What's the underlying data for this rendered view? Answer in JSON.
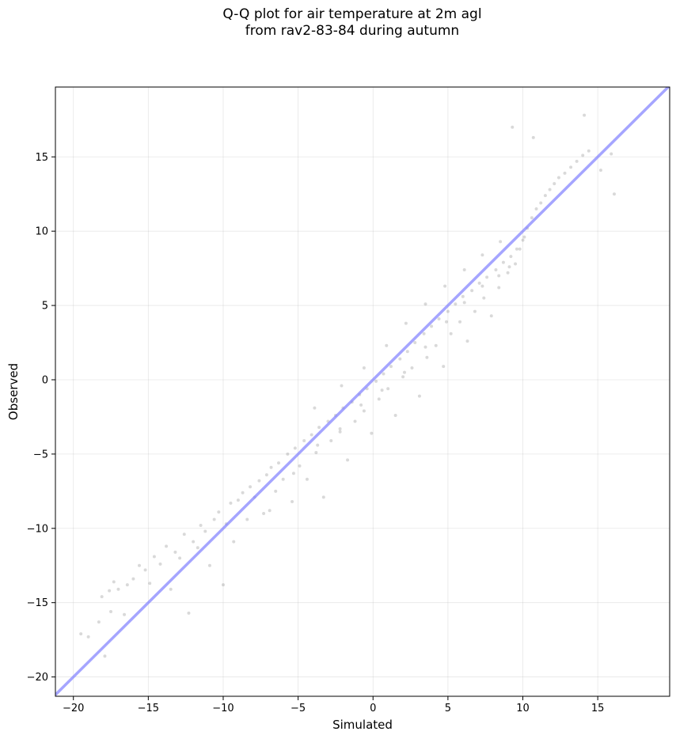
{
  "chart_data": {
    "type": "scatter",
    "title": [
      "Q-Q plot for air temperature at 2m agl",
      "from rav2-83-84 during autumn"
    ],
    "xlabel": "Simulated",
    "ylabel": "Observed",
    "xlim": [
      -21.2,
      19.8
    ],
    "ylim": [
      -21.3,
      19.7
    ],
    "xticks": [
      -20,
      -15,
      -10,
      -5,
      0,
      5,
      10,
      15
    ],
    "yticks": [
      -20,
      -15,
      -10,
      -5,
      0,
      5,
      10,
      15
    ],
    "xtick_labels": [
      "−20",
      "−15",
      "−10",
      "−5",
      "0",
      "5",
      "10",
      "15"
    ],
    "ytick_labels": [
      "−20",
      "−15",
      "−10",
      "−5",
      "0",
      "5",
      "10",
      "15"
    ],
    "grid": true,
    "point_color": "#000000",
    "point_alpha": 0.15,
    "reference_line": {
      "from": [
        -21.2,
        -21.2
      ],
      "to": [
        19.8,
        19.8
      ],
      "color": "#7f7fff"
    },
    "series": [
      {
        "points": [
          [
            -19.5,
            -17.1
          ],
          [
            -19.0,
            -17.3
          ],
          [
            -18.3,
            -16.3
          ],
          [
            -18.1,
            -14.6
          ],
          [
            -17.9,
            -18.6
          ],
          [
            -17.6,
            -14.2
          ],
          [
            -17.5,
            -15.6
          ],
          [
            -17.3,
            -13.6
          ],
          [
            -17.0,
            -14.1
          ],
          [
            -16.6,
            -15.8
          ],
          [
            -16.4,
            -13.8
          ],
          [
            -16.0,
            -13.4
          ],
          [
            -15.6,
            -12.5
          ],
          [
            -15.2,
            -12.8
          ],
          [
            -14.9,
            -13.7
          ],
          [
            -14.6,
            -11.9
          ],
          [
            -14.2,
            -12.4
          ],
          [
            -13.8,
            -11.2
          ],
          [
            -13.5,
            -14.1
          ],
          [
            -13.2,
            -11.6
          ],
          [
            -12.9,
            -12.0
          ],
          [
            -12.6,
            -10.4
          ],
          [
            -12.3,
            -15.7
          ],
          [
            -12.0,
            -10.9
          ],
          [
            -11.7,
            -11.3
          ],
          [
            -11.5,
            -9.8
          ],
          [
            -11.2,
            -10.2
          ],
          [
            -10.9,
            -12.5
          ],
          [
            -10.6,
            -9.4
          ],
          [
            -10.3,
            -8.9
          ],
          [
            -10.0,
            -13.8
          ],
          [
            -9.8,
            -9.7
          ],
          [
            -9.5,
            -8.3
          ],
          [
            -9.3,
            -10.9
          ],
          [
            -9.0,
            -8.1
          ],
          [
            -8.7,
            -7.6
          ],
          [
            -8.4,
            -9.4
          ],
          [
            -8.2,
            -7.2
          ],
          [
            -7.9,
            -7.9
          ],
          [
            -7.6,
            -6.8
          ],
          [
            -7.3,
            -9.0
          ],
          [
            -7.1,
            -6.4
          ],
          [
            -6.8,
            -5.9
          ],
          [
            -6.5,
            -7.5
          ],
          [
            -6.3,
            -5.6
          ],
          [
            -6.0,
            -6.7
          ],
          [
            -5.7,
            -5.0
          ],
          [
            -5.4,
            -8.2
          ],
          [
            -5.2,
            -4.6
          ],
          [
            -4.9,
            -5.8
          ],
          [
            -4.6,
            -4.1
          ],
          [
            -4.4,
            -6.7
          ],
          [
            -4.1,
            -3.7
          ],
          [
            -3.8,
            -4.9
          ],
          [
            -3.6,
            -3.2
          ],
          [
            -3.3,
            -7.9
          ],
          [
            -3.0,
            -2.8
          ],
          [
            -2.8,
            -4.1
          ],
          [
            -2.5,
            -2.4
          ],
          [
            -2.2,
            -3.5
          ],
          [
            -2.0,
            -1.9
          ],
          [
            -1.7,
            -5.4
          ],
          [
            -1.4,
            -1.5
          ],
          [
            -1.2,
            -2.8
          ],
          [
            -0.9,
            -1.0
          ],
          [
            -0.6,
            -2.1
          ],
          [
            -0.4,
            -0.6
          ],
          [
            -0.1,
            -3.6
          ],
          [
            0.2,
            -0.1
          ],
          [
            0.4,
            -1.3
          ],
          [
            0.7,
            0.4
          ],
          [
            1.0,
            -0.6
          ],
          [
            1.2,
            0.9
          ],
          [
            1.5,
            -2.4
          ],
          [
            1.8,
            1.4
          ],
          [
            2.0,
            0.2
          ],
          [
            2.3,
            1.9
          ],
          [
            2.6,
            0.8
          ],
          [
            2.8,
            2.5
          ],
          [
            3.1,
            -1.1
          ],
          [
            3.4,
            3.1
          ],
          [
            3.6,
            1.5
          ],
          [
            3.9,
            3.6
          ],
          [
            4.2,
            2.3
          ],
          [
            4.4,
            4.1
          ],
          [
            4.7,
            0.9
          ],
          [
            5.0,
            4.6
          ],
          [
            5.2,
            3.1
          ],
          [
            5.5,
            5.1
          ],
          [
            5.8,
            3.9
          ],
          [
            6.0,
            5.6
          ],
          [
            6.3,
            2.6
          ],
          [
            6.6,
            6.0
          ],
          [
            6.8,
            4.6
          ],
          [
            7.1,
            6.5
          ],
          [
            7.4,
            5.5
          ],
          [
            7.6,
            6.9
          ],
          [
            7.9,
            4.3
          ],
          [
            8.2,
            7.4
          ],
          [
            8.4,
            6.2
          ],
          [
            8.7,
            7.9
          ],
          [
            9.0,
            7.2
          ],
          [
            9.2,
            8.3
          ],
          [
            9.5,
            7.8
          ],
          [
            9.8,
            8.8
          ],
          [
            10.0,
            9.4
          ],
          [
            10.3,
            10.2
          ],
          [
            10.6,
            10.9
          ],
          [
            10.9,
            11.5
          ],
          [
            11.2,
            11.9
          ],
          [
            11.5,
            12.4
          ],
          [
            11.8,
            12.8
          ],
          [
            12.1,
            13.2
          ],
          [
            12.4,
            13.6
          ],
          [
            12.8,
            13.9
          ],
          [
            13.2,
            14.3
          ],
          [
            13.6,
            14.7
          ],
          [
            14.0,
            15.1
          ],
          [
            14.4,
            15.4
          ],
          [
            15.2,
            14.1
          ],
          [
            15.9,
            15.2
          ],
          [
            16.1,
            12.5
          ],
          [
            9.3,
            17.0
          ],
          [
            14.1,
            17.8
          ],
          [
            10.7,
            16.3
          ],
          [
            -3.9,
            -1.9
          ],
          [
            -2.1,
            -0.4
          ],
          [
            -0.6,
            0.8
          ],
          [
            0.9,
            2.3
          ],
          [
            2.2,
            3.8
          ],
          [
            3.5,
            5.1
          ],
          [
            4.8,
            6.3
          ],
          [
            6.1,
            7.4
          ],
          [
            7.3,
            8.4
          ],
          [
            8.5,
            9.3
          ],
          [
            -6.9,
            -8.8
          ],
          [
            -5.3,
            -6.3
          ],
          [
            -3.7,
            -4.4
          ],
          [
            -2.2,
            -3.3
          ],
          [
            -0.8,
            -1.7
          ],
          [
            0.6,
            -0.7
          ],
          [
            2.1,
            0.5
          ],
          [
            3.5,
            2.2
          ],
          [
            4.9,
            3.9
          ],
          [
            6.1,
            5.2
          ],
          [
            7.3,
            6.3
          ],
          [
            8.4,
            7.0
          ],
          [
            9.1,
            7.6
          ],
          [
            9.6,
            8.8
          ],
          [
            10.1,
            9.6
          ]
        ]
      }
    ]
  }
}
